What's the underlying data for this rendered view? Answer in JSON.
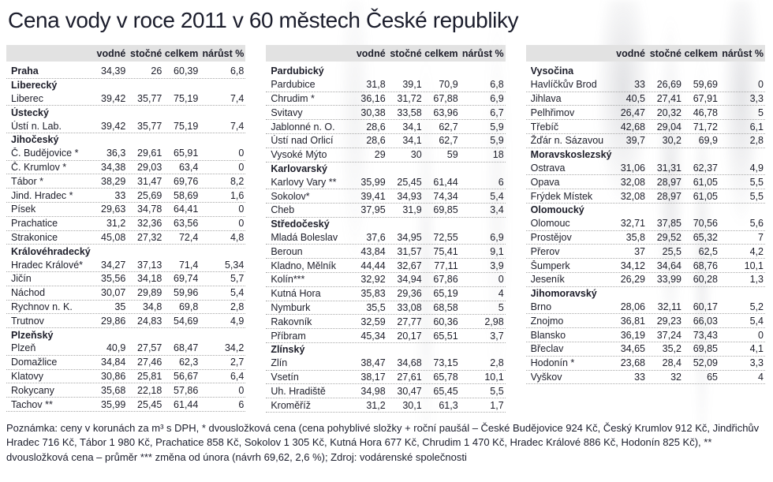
{
  "chart_data": {
    "type": "table",
    "title": "Cena vody v roce 2011 v 60 městech České republiky",
    "columns": [
      "vodné",
      "stočné",
      "celkem",
      "nárůst %"
    ],
    "tables": [
      {
        "rows": [
          {
            "label": "Praha",
            "bold": true,
            "values": [
              "34,39",
              "26",
              "60,39",
              "6,8"
            ]
          },
          {
            "label": "Liberecký",
            "bold": true,
            "values": null
          },
          {
            "label": "Liberec",
            "bold": false,
            "values": [
              "39,42",
              "35,77",
              "75,19",
              "7,4"
            ]
          },
          {
            "label": "Ústecký",
            "bold": true,
            "values": null
          },
          {
            "label": "Ústí n. Lab.",
            "bold": false,
            "values": [
              "39,42",
              "35,77",
              "75,19",
              "7,4"
            ]
          },
          {
            "label": "Jihočeský",
            "bold": true,
            "values": null
          },
          {
            "label": "Č. Budějovice *",
            "bold": false,
            "values": [
              "36,3",
              "29,61",
              "65,91",
              "0"
            ]
          },
          {
            "label": "Č. Krumlov *",
            "bold": false,
            "values": [
              "34,38",
              "29,03",
              "63,4",
              "0"
            ]
          },
          {
            "label": "Tábor *",
            "bold": false,
            "values": [
              "38,29",
              "31,47",
              "69,76",
              "8,2"
            ]
          },
          {
            "label": "Jind. Hradec *",
            "bold": false,
            "values": [
              "33",
              "25,69",
              "58,69",
              "1,6"
            ]
          },
          {
            "label": "Písek",
            "bold": false,
            "values": [
              "29,63",
              "34,78",
              "64,41",
              "0"
            ]
          },
          {
            "label": "Prachatice",
            "bold": false,
            "values": [
              "31,2",
              "32,36",
              "63,56",
              "0"
            ]
          },
          {
            "label": "Strakonice",
            "bold": false,
            "values": [
              "45,08",
              "27,32",
              "72,4",
              "4,8"
            ]
          },
          {
            "label": "Královéhradecký",
            "bold": true,
            "values": null
          },
          {
            "label": "Hradec Králové*",
            "bold": false,
            "values": [
              "34,27",
              "37,13",
              "71,4",
              "5,34"
            ]
          },
          {
            "label": "Jičín",
            "bold": false,
            "values": [
              "35,56",
              "34,18",
              "69,74",
              "5,7"
            ]
          },
          {
            "label": "Náchod",
            "bold": false,
            "values": [
              "30,07",
              "29,89",
              "59,96",
              "5,4"
            ]
          },
          {
            "label": "Rychnov n. K.",
            "bold": false,
            "values": [
              "35",
              "34,8",
              "69,8",
              "2,8"
            ]
          },
          {
            "label": "Trutnov",
            "bold": false,
            "values": [
              "29,86",
              "24,83",
              "54,69",
              "4,9"
            ]
          },
          {
            "label": "Plzeňský",
            "bold": true,
            "values": null
          },
          {
            "label": "Plzeň",
            "bold": false,
            "values": [
              "40,9",
              "27,57",
              "68,47",
              "34,2"
            ]
          },
          {
            "label": "Domažlice",
            "bold": false,
            "values": [
              "34,84",
              "27,46",
              "62,3",
              "2,7"
            ]
          },
          {
            "label": "Klatovy",
            "bold": false,
            "values": [
              "30,86",
              "25,81",
              "56,67",
              "6,4"
            ]
          },
          {
            "label": "Rokycany",
            "bold": false,
            "values": [
              "35,68",
              "22,18",
              "57,86",
              "0"
            ]
          },
          {
            "label": "Tachov **",
            "bold": false,
            "values": [
              "35,99",
              "25,45",
              "61,44",
              "6"
            ]
          }
        ]
      },
      {
        "rows": [
          {
            "label": "Pardubický",
            "bold": true,
            "values": null
          },
          {
            "label": "Pardubice",
            "bold": false,
            "values": [
              "31,8",
              "39,1",
              "70,9",
              "6,8"
            ]
          },
          {
            "label": "Chrudim *",
            "bold": false,
            "values": [
              "36,16",
              "31,72",
              "67,88",
              "6,9"
            ]
          },
          {
            "label": "Svitavy",
            "bold": false,
            "values": [
              "30,38",
              "33,58",
              "63,96",
              "6,7"
            ]
          },
          {
            "label": "Jablonné n. O.",
            "bold": false,
            "values": [
              "28,6",
              "34,1",
              "62,7",
              "5,9"
            ]
          },
          {
            "label": "Ústí nad Orlicí",
            "bold": false,
            "values": [
              "28,6",
              "34,1",
              "62,7",
              "5,9"
            ]
          },
          {
            "label": "Vysoké Mýto",
            "bold": false,
            "values": [
              "29",
              "30",
              "59",
              "18"
            ]
          },
          {
            "label": "Karlovarský",
            "bold": true,
            "values": null
          },
          {
            "label": "Karlovy Vary **",
            "bold": false,
            "values": [
              "35,99",
              "25,45",
              "61,44",
              "6"
            ]
          },
          {
            "label": "Sokolov*",
            "bold": false,
            "values": [
              "39,41",
              "34,93",
              "74,34",
              "5,4"
            ]
          },
          {
            "label": "Cheb",
            "bold": false,
            "values": [
              "37,95",
              "31,9",
              "69,85",
              "3,4"
            ]
          },
          {
            "label": "Středočeský",
            "bold": true,
            "values": null
          },
          {
            "label": "Mladá Boleslav",
            "bold": false,
            "values": [
              "37,6",
              "34,95",
              "72,55",
              "6,9"
            ]
          },
          {
            "label": "Beroun",
            "bold": false,
            "values": [
              "43,84",
              "31,57",
              "75,41",
              "9,1"
            ]
          },
          {
            "label": "Kladno, Mělník",
            "bold": false,
            "values": [
              "44,44",
              "32,67",
              "77,11",
              "3,9"
            ]
          },
          {
            "label": "Kolín***",
            "bold": false,
            "values": [
              "32,92",
              "34,94",
              "67,86",
              "0"
            ]
          },
          {
            "label": "Kutná Hora",
            "bold": false,
            "values": [
              "35,83",
              "29,36",
              "65,19",
              "4"
            ]
          },
          {
            "label": "Nymburk",
            "bold": false,
            "values": [
              "35,5",
              "33,08",
              "68,58",
              "5"
            ]
          },
          {
            "label": "Rakovník",
            "bold": false,
            "values": [
              "32,59",
              "27,77",
              "60,36",
              "2,98"
            ]
          },
          {
            "label": "Příbram",
            "bold": false,
            "values": [
              "45,34",
              "20,17",
              "65,51",
              "3,7"
            ]
          },
          {
            "label": "Zlínský",
            "bold": true,
            "values": null
          },
          {
            "label": "Zlín",
            "bold": false,
            "values": [
              "38,47",
              "34,68",
              "73,15",
              "2,8"
            ]
          },
          {
            "label": "Vsetín",
            "bold": false,
            "values": [
              "38,17",
              "27,61",
              "65,78",
              "10,1"
            ]
          },
          {
            "label": "Uh. Hradiště",
            "bold": false,
            "values": [
              "34,98",
              "30,47",
              "65,45",
              "5,5"
            ]
          },
          {
            "label": "Kroměříž",
            "bold": false,
            "values": [
              "31,2",
              "30,1",
              "61,3",
              "1,7"
            ]
          }
        ]
      },
      {
        "rows": [
          {
            "label": "Vysočina",
            "bold": true,
            "values": null
          },
          {
            "label": "Havlíčkův Brod",
            "bold": false,
            "values": [
              "33",
              "26,69",
              "59,69",
              "0"
            ]
          },
          {
            "label": "Jihlava",
            "bold": false,
            "values": [
              "40,5",
              "27,41",
              "67,91",
              "3,3"
            ]
          },
          {
            "label": "Pelhřimov",
            "bold": false,
            "values": [
              "26,47",
              "20,32",
              "46,78",
              "5"
            ]
          },
          {
            "label": "Třebíč",
            "bold": false,
            "values": [
              "42,68",
              "29,04",
              "71,72",
              "6,1"
            ]
          },
          {
            "label": "Žďár n. Sázavou",
            "bold": false,
            "values": [
              "39,7",
              "30,2",
              "69,9",
              "2,8"
            ]
          },
          {
            "label": "Moravskoslezský",
            "bold": true,
            "values": null
          },
          {
            "label": "Ostrava",
            "bold": false,
            "values": [
              "31,06",
              "31,31",
              "62,37",
              "4,9"
            ]
          },
          {
            "label": "Opava",
            "bold": false,
            "values": [
              "32,08",
              "28,97",
              "61,05",
              "5,5"
            ]
          },
          {
            "label": "Frýdek Místek",
            "bold": false,
            "values": [
              "32,08",
              "28,97",
              "61,05",
              "5,5"
            ]
          },
          {
            "label": "Olomoucký",
            "bold": true,
            "values": null
          },
          {
            "label": "Olomouc",
            "bold": false,
            "values": [
              "32,71",
              "37,85",
              "70,56",
              "5,6"
            ]
          },
          {
            "label": "Prostějov",
            "bold": false,
            "values": [
              "35,8",
              "29,52",
              "65,32",
              "7"
            ]
          },
          {
            "label": "Přerov",
            "bold": false,
            "values": [
              "37",
              "25,5",
              "62,5",
              "4,2"
            ]
          },
          {
            "label": "Šumperk",
            "bold": false,
            "values": [
              "34,12",
              "34,64",
              "68,76",
              "10,1"
            ]
          },
          {
            "label": "Jeseník",
            "bold": false,
            "values": [
              "26,29",
              "33,99",
              "60,28",
              "1,3"
            ]
          },
          {
            "label": "Jihomoravský",
            "bold": true,
            "values": null
          },
          {
            "label": "Brno",
            "bold": false,
            "values": [
              "28,06",
              "32,11",
              "60,17",
              "5,2"
            ]
          },
          {
            "label": "Znojmo",
            "bold": false,
            "values": [
              "36,81",
              "29,23",
              "66,03",
              "5,4"
            ]
          },
          {
            "label": "Blansko",
            "bold": false,
            "values": [
              "36,19",
              "37,24",
              "73,43",
              "0"
            ]
          },
          {
            "label": "Břeclav",
            "bold": false,
            "values": [
              "34,65",
              "35,2",
              "69,85",
              "4,1"
            ]
          },
          {
            "label": "Hodonín *",
            "bold": false,
            "values": [
              "23,68",
              "28,4",
              "52,09",
              "3,3"
            ]
          },
          {
            "label": "Vyškov",
            "bold": false,
            "values": [
              "33",
              "32",
              "65",
              "4"
            ]
          }
        ]
      }
    ]
  },
  "footnote": "Poznámka: ceny v korunách za m³ s DPH, * dvousložková cena (cena pohyblivé složky + roční paušál  – České Budějovice 924 Kč, Český Krumlov 912 Kč, Jindřichův Hradec 716 Kč, Tábor 1 980 Kč, Prachatice 858 Kč, Sokolov 1 305 Kč, Kutná Hora 677 Kč, Chrudim 1 470 Kč, Hradec Králové 886 Kč, Hodonín 825 Kč), ** dvousložková cena – průměr  *** změna od února (návrh 69,62, 2,6 %); Zdroj: vodárenské společnosti"
}
